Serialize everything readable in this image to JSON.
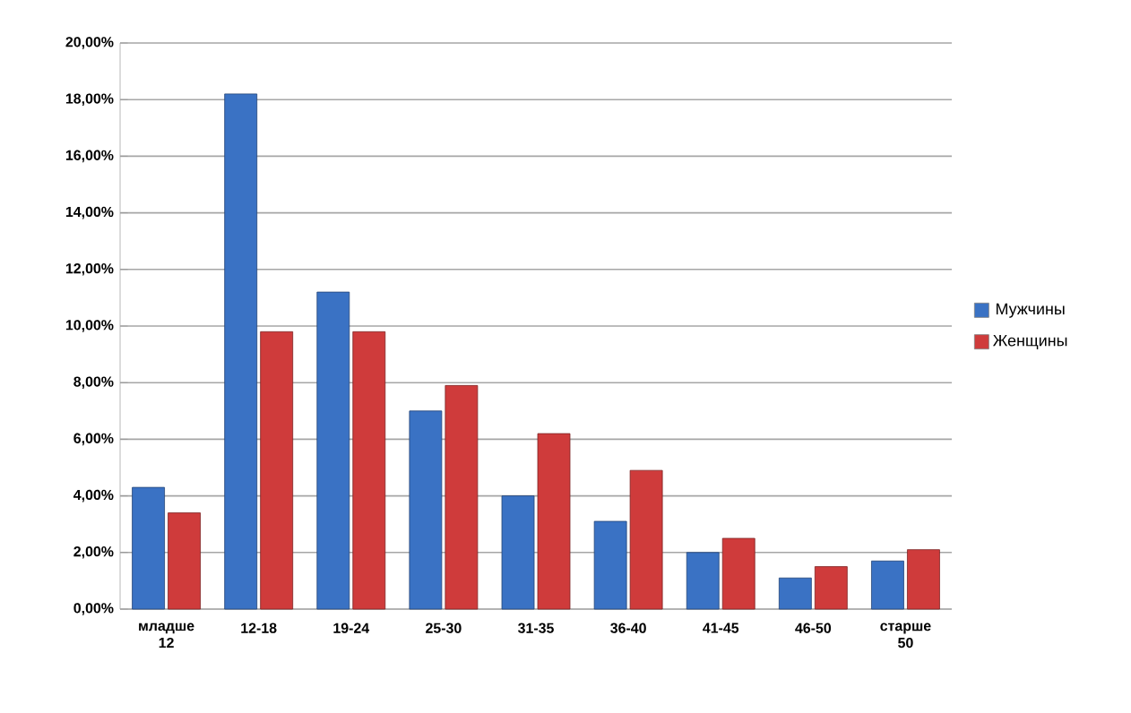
{
  "chart_data": {
    "type": "bar",
    "categories": [
      "младше 12",
      "12-18",
      "19-24",
      "25-30",
      "31-35",
      "36-40",
      "41-45",
      "46-50",
      "старше 50"
    ],
    "series": [
      {
        "name": "Мужчины",
        "color": "#3a72c4",
        "values": [
          4.3,
          18.2,
          11.2,
          7.0,
          4.0,
          3.1,
          2.0,
          1.1,
          1.7
        ]
      },
      {
        "name": "Женщины",
        "color": "#cf3b3b",
        "values": [
          3.4,
          9.8,
          9.8,
          7.9,
          6.2,
          4.9,
          2.5,
          1.5,
          2.1
        ]
      }
    ],
    "ylim": [
      0,
      20
    ],
    "yticks": [
      {
        "value": 0,
        "label": "0,00%"
      },
      {
        "value": 2,
        "label": "2,00%"
      },
      {
        "value": 4,
        "label": "4,00%"
      },
      {
        "value": 6,
        "label": "6,00%"
      },
      {
        "value": 8,
        "label": "8,00%"
      },
      {
        "value": 10,
        "label": "10,00%"
      },
      {
        "value": 12,
        "label": "12,00%"
      },
      {
        "value": 14,
        "label": "14,00%"
      },
      {
        "value": 16,
        "label": "16,00%"
      },
      {
        "value": 18,
        "label": "18,00%"
      },
      {
        "value": 20,
        "label": "20,00%"
      }
    ],
    "grid": "y",
    "legend": "right"
  }
}
